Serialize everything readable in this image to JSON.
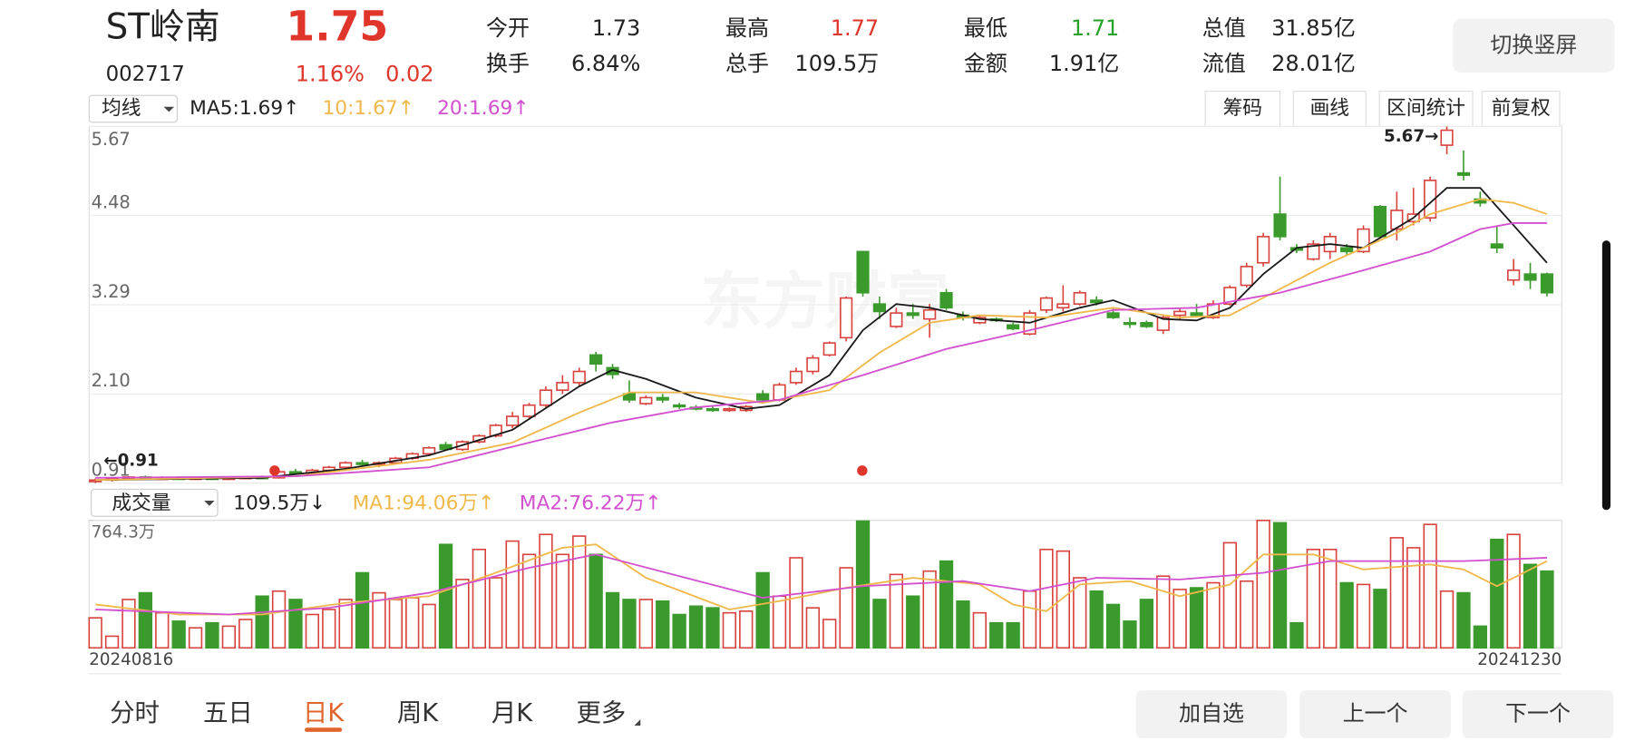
{
  "header": {
    "name": "ST岭南",
    "price": "1.75",
    "code": "002717",
    "change_pct": "1.16%",
    "change": "0.02",
    "quotes": [
      {
        "label": "今开",
        "value": "1.73",
        "color": "#222222"
      },
      {
        "label": "最高",
        "value": "1.77",
        "color": "#e0352b"
      },
      {
        "label": "最低",
        "value": "1.71",
        "color": "#27a22b"
      },
      {
        "label": "总值",
        "value": "31.85亿",
        "color": "#222222"
      },
      {
        "label": "换手",
        "value": "6.84%",
        "color": "#222222"
      },
      {
        "label": "总手",
        "value": "109.5万",
        "color": "#222222"
      },
      {
        "label": "金额",
        "value": "1.91亿",
        "color": "#222222"
      },
      {
        "label": "流值",
        "value": "28.01亿",
        "color": "#222222"
      }
    ],
    "rotate_button": "切换竖屏"
  },
  "toolbar": {
    "indicator": "均线",
    "buttons": [
      "筹码",
      "画线",
      "区间统计",
      "前复权"
    ]
  },
  "watermark": "东方财富",
  "chart_data": [
    {
      "type": "candlestick",
      "up_color": "#d9413c",
      "down_color": "#3a9b2c",
      "ylim": [
        0.91,
        5.67
      ],
      "yticks": [
        0.91,
        {
          "value": 2.1,
          "label": "2.10"
        },
        3.29,
        4.48,
        5.67
      ],
      "grid": true,
      "annotations": [
        "5.67→",
        "←0.91"
      ],
      "candles": [
        [
          0.93,
          0.97,
          0.91,
          0.95
        ],
        [
          0.95,
          0.98,
          0.93,
          0.97
        ],
        [
          0.97,
          1.0,
          0.95,
          0.99
        ],
        [
          0.99,
          1.01,
          0.96,
          0.97
        ],
        [
          0.97,
          1.0,
          0.95,
          0.98
        ],
        [
          0.98,
          1.0,
          0.96,
          0.97
        ],
        [
          0.97,
          0.99,
          0.95,
          0.98
        ],
        [
          0.98,
          1.0,
          0.96,
          0.97
        ],
        [
          0.97,
          0.99,
          0.95,
          0.98
        ],
        [
          0.98,
          1.0,
          0.96,
          0.99
        ],
        [
          0.99,
          1.01,
          0.97,
          0.98
        ],
        [
          0.98,
          1.08,
          0.97,
          1.06
        ],
        [
          1.06,
          1.1,
          1.02,
          1.04
        ],
        [
          1.04,
          1.1,
          1.03,
          1.08
        ],
        [
          1.08,
          1.14,
          1.06,
          1.12
        ],
        [
          1.12,
          1.2,
          1.1,
          1.18
        ],
        [
          1.18,
          1.22,
          1.14,
          1.16
        ],
        [
          1.16,
          1.2,
          1.12,
          1.18
        ],
        [
          1.18,
          1.26,
          1.16,
          1.24
        ],
        [
          1.24,
          1.32,
          1.22,
          1.3
        ],
        [
          1.3,
          1.4,
          1.28,
          1.38
        ],
        [
          1.42,
          1.46,
          1.34,
          1.36
        ],
        [
          1.36,
          1.48,
          1.34,
          1.46
        ],
        [
          1.46,
          1.56,
          1.44,
          1.54
        ],
        [
          1.54,
          1.7,
          1.52,
          1.68
        ],
        [
          1.68,
          1.86,
          1.64,
          1.8
        ],
        [
          1.8,
          1.98,
          1.76,
          1.95
        ],
        [
          1.95,
          2.2,
          1.92,
          2.15
        ],
        [
          2.15,
          2.35,
          2.1,
          2.25
        ],
        [
          2.25,
          2.45,
          2.2,
          2.4
        ],
        [
          2.62,
          2.66,
          2.4,
          2.5
        ],
        [
          2.45,
          2.5,
          2.3,
          2.36
        ],
        [
          2.1,
          2.28,
          1.98,
          2.02
        ],
        [
          1.97,
          2.08,
          1.95,
          2.05
        ],
        [
          2.05,
          2.1,
          1.98,
          2.02
        ],
        [
          1.95,
          1.98,
          1.9,
          1.93
        ],
        [
          1.92,
          1.95,
          1.88,
          1.9
        ],
        [
          1.9,
          1.93,
          1.86,
          1.88
        ],
        [
          1.88,
          1.92,
          1.86,
          1.9
        ],
        [
          1.88,
          1.95,
          1.86,
          1.93
        ],
        [
          2.1,
          2.15,
          1.98,
          2.02
        ],
        [
          2.02,
          2.25,
          2.0,
          2.22
        ],
        [
          2.25,
          2.45,
          2.22,
          2.4
        ],
        [
          2.4,
          2.62,
          2.36,
          2.58
        ],
        [
          2.62,
          2.8,
          2.6,
          2.78
        ],
        [
          2.85,
          3.4,
          2.8,
          3.38
        ],
        [
          4.0,
          4.0,
          3.4,
          3.45
        ],
        [
          3.3,
          3.4,
          3.1,
          3.2
        ],
        [
          3.0,
          3.25,
          2.98,
          3.18
        ],
        [
          3.18,
          3.3,
          3.1,
          3.15
        ],
        [
          3.1,
          3.3,
          2.85,
          3.22
        ],
        [
          3.45,
          3.5,
          3.22,
          3.25
        ],
        [
          3.15,
          3.2,
          3.08,
          3.12
        ],
        [
          3.05,
          3.15,
          3.03,
          3.12
        ],
        [
          3.1,
          3.12,
          3.06,
          3.08
        ],
        [
          3.02,
          3.05,
          2.95,
          2.97
        ],
        [
          2.9,
          3.22,
          2.88,
          3.18
        ],
        [
          3.22,
          3.4,
          3.18,
          3.38
        ],
        [
          3.25,
          3.55,
          3.2,
          3.3
        ],
        [
          3.3,
          3.48,
          3.28,
          3.45
        ],
        [
          3.35,
          3.4,
          3.28,
          3.32
        ],
        [
          3.18,
          3.25,
          3.1,
          3.12
        ],
        [
          3.05,
          3.12,
          2.98,
          3.04
        ],
        [
          3.05,
          3.08,
          2.98,
          3.0
        ],
        [
          2.95,
          3.15,
          2.9,
          3.12
        ],
        [
          3.15,
          3.25,
          3.1,
          3.2
        ],
        [
          3.18,
          3.3,
          3.12,
          3.15
        ],
        [
          3.12,
          3.35,
          3.1,
          3.3
        ],
        [
          3.3,
          3.55,
          3.28,
          3.52
        ],
        [
          3.55,
          3.85,
          3.52,
          3.8
        ],
        [
          3.85,
          4.25,
          3.8,
          4.2
        ],
        [
          4.5,
          5.0,
          4.15,
          4.2
        ],
        [
          4.05,
          4.1,
          3.98,
          4.02
        ],
        [
          3.9,
          4.15,
          3.88,
          4.1
        ],
        [
          4.0,
          4.25,
          3.9,
          4.2
        ],
        [
          4.05,
          4.1,
          3.95,
          4.0
        ],
        [
          4.0,
          4.35,
          3.98,
          4.3
        ],
        [
          4.6,
          4.62,
          4.18,
          4.2
        ],
        [
          4.3,
          4.8,
          4.15,
          4.55
        ],
        [
          4.4,
          4.85,
          4.35,
          4.5
        ],
        [
          4.45,
          5.0,
          4.4,
          4.95
        ],
        [
          5.42,
          5.67,
          5.3,
          5.62
        ],
        [
          5.05,
          5.35,
          4.95,
          5.02
        ],
        [
          4.7,
          4.8,
          4.6,
          4.65
        ],
        [
          4.1,
          4.35,
          3.98,
          4.05
        ],
        [
          3.62,
          3.9,
          3.55,
          3.75
        ],
        [
          3.7,
          3.85,
          3.5,
          3.62
        ],
        [
          3.7,
          3.72,
          3.4,
          3.45
        ]
      ],
      "series": [
        {
          "name": "MA5:1.69↑",
          "color": "#1a1a1a",
          "x": [
            0,
            10,
            15,
            20,
            25,
            29,
            31,
            33,
            36,
            39,
            41,
            44,
            46,
            48,
            50,
            53,
            56,
            59,
            61,
            64,
            66,
            68,
            70,
            72,
            74,
            76,
            79,
            81,
            83,
            85,
            87
          ],
          "values": [
            0.95,
            0.98,
            1.1,
            1.28,
            1.62,
            2.2,
            2.42,
            2.3,
            2.05,
            1.9,
            1.95,
            2.35,
            2.95,
            3.3,
            3.25,
            3.1,
            3.05,
            3.25,
            3.35,
            3.1,
            3.08,
            3.25,
            3.7,
            4.05,
            4.1,
            4.05,
            4.45,
            4.85,
            4.85,
            4.35,
            3.85
          ]
        },
        {
          "name": "10:1.67↑",
          "color": "#f0b84a",
          "x": [
            0,
            12,
            20,
            25,
            29,
            32,
            36,
            40,
            44,
            47,
            50,
            53,
            57,
            61,
            65,
            68,
            71,
            74,
            78,
            80,
            83,
            85,
            87
          ],
          "values": [
            0.95,
            1.0,
            1.22,
            1.45,
            1.85,
            2.12,
            2.12,
            1.98,
            2.15,
            2.65,
            3.05,
            3.15,
            3.12,
            3.25,
            3.12,
            3.15,
            3.5,
            3.85,
            4.25,
            4.5,
            4.7,
            4.65,
            4.5
          ]
        },
        {
          "name": "20:1.69↑",
          "color": "#d24fcf",
          "x": [
            0,
            12,
            20,
            26,
            31,
            36,
            41,
            46,
            51,
            56,
            61,
            66,
            71,
            76,
            80,
            83,
            85,
            87
          ],
          "values": [
            0.98,
            1.0,
            1.12,
            1.45,
            1.72,
            1.92,
            2.02,
            2.35,
            2.7,
            2.95,
            3.22,
            3.25,
            3.45,
            3.75,
            4.0,
            4.3,
            4.38,
            4.38
          ]
        }
      ]
    },
    {
      "type": "bar",
      "indicator": "成交量",
      "current": "109.5万↓",
      "ylim": [
        0,
        764.3
      ],
      "yticks": [
        0,
        {
          "value": 764.3,
          "label": "764.3万"
        }
      ],
      "x_labels": [
        "20240816",
        "20241230"
      ],
      "values": [
        180,
        70,
        290,
        330,
        210,
        160,
        120,
        150,
        130,
        170,
        310,
        340,
        290,
        200,
        230,
        290,
        450,
        330,
        290,
        300,
        260,
        620,
        410,
        590,
        420,
        640,
        560,
        680,
        560,
        670,
        560,
        330,
        290,
        290,
        280,
        200,
        250,
        240,
        210,
        220,
        450,
        310,
        540,
        240,
        170,
        480,
        760,
        290,
        440,
        310,
        460,
        520,
        280,
        210,
        150,
        150,
        340,
        590,
        580,
        420,
        340,
        260,
        160,
        290,
        430,
        350,
        360,
        390,
        630,
        400,
        764,
        750,
        150,
        590,
        590,
        390,
        380,
        350,
        660,
        600,
        740,
        340,
        330,
        130,
        650,
        680,
        500,
        460
      ],
      "series": [
        {
          "name": "MA1:94.06万↑",
          "color": "#f0b84a",
          "x": [
            0,
            5,
            10,
            15,
            20,
            24,
            28,
            30,
            33,
            38,
            41,
            45,
            49,
            53,
            55,
            57,
            59,
            62,
            65,
            68,
            70,
            73,
            76,
            80,
            82,
            84,
            86,
            87
          ],
          "values": [
            260,
            200,
            200,
            270,
            310,
            450,
            600,
            620,
            420,
            230,
            280,
            360,
            420,
            380,
            260,
            220,
            380,
            400,
            310,
            380,
            560,
            560,
            470,
            500,
            470,
            370,
            470,
            520
          ]
        },
        {
          "name": "MA2:76.22万↑",
          "color": "#d24fcf",
          "x": [
            0,
            8,
            14,
            20,
            26,
            30,
            35,
            40,
            46,
            52,
            56,
            60,
            65,
            70,
            74,
            78,
            82,
            87
          ],
          "values": [
            230,
            200,
            240,
            330,
            480,
            560,
            430,
            300,
            370,
            400,
            340,
            420,
            410,
            450,
            520,
            520,
            520,
            540
          ]
        }
      ]
    }
  ],
  "tabs": [
    "分时",
    "五日",
    "日K",
    "周K",
    "月K",
    "更多"
  ],
  "active_tab": 2,
  "actions": [
    "加自选",
    "上一个",
    "下一个"
  ]
}
